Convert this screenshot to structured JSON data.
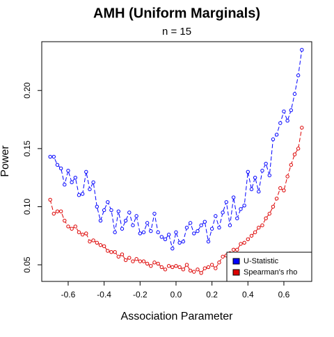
{
  "chart_data": {
    "type": "line",
    "title": "AMH (Uniform Marginals)",
    "subtitle": "n = 15",
    "xlabel": "Association Parameter",
    "ylabel": "Power",
    "x": [
      -0.7,
      -0.68,
      -0.66,
      -0.64,
      -0.62,
      -0.6,
      -0.58,
      -0.56,
      -0.54,
      -0.52,
      -0.5,
      -0.48,
      -0.46,
      -0.44,
      -0.42,
      -0.4,
      -0.38,
      -0.36,
      -0.34,
      -0.32,
      -0.3,
      -0.28,
      -0.26,
      -0.24,
      -0.22,
      -0.2,
      -0.18,
      -0.16,
      -0.14,
      -0.12,
      -0.1,
      -0.08,
      -0.06,
      -0.04,
      -0.02,
      0,
      0.02,
      0.04,
      0.06,
      0.08,
      0.1,
      0.12,
      0.14,
      0.16,
      0.18,
      0.2,
      0.22,
      0.24,
      0.26,
      0.28,
      0.3,
      0.32,
      0.34,
      0.36,
      0.38,
      0.4,
      0.42,
      0.44,
      0.46,
      0.48,
      0.5,
      0.52,
      0.54,
      0.56,
      0.58,
      0.6,
      0.62,
      0.64,
      0.66,
      0.68,
      0.7
    ],
    "series": [
      {
        "name": "U-Statistic",
        "color": "#0000ff",
        "values": [
          0.143,
          0.143,
          0.136,
          0.133,
          0.119,
          0.131,
          0.121,
          0.125,
          0.11,
          0.111,
          0.13,
          0.115,
          0.121,
          0.1,
          0.088,
          0.097,
          0.104,
          0.097,
          0.078,
          0.096,
          0.081,
          0.088,
          0.095,
          0.084,
          0.092,
          0.077,
          0.078,
          0.086,
          0.079,
          0.094,
          0.078,
          0.074,
          0.072,
          0.076,
          0.064,
          0.078,
          0.069,
          0.07,
          0.082,
          0.086,
          0.077,
          0.079,
          0.084,
          0.087,
          0.07,
          0.081,
          0.092,
          0.082,
          0.095,
          0.104,
          0.084,
          0.108,
          0.09,
          0.098,
          0.101,
          0.13,
          0.115,
          0.125,
          0.113,
          0.131,
          0.137,
          0.127,
          0.158,
          0.162,
          0.172,
          0.182,
          0.174,
          0.183,
          0.197,
          0.213,
          0.235
        ]
      },
      {
        "name": "Spearman's rho",
        "color": "#dd0000",
        "values": [
          0.106,
          0.094,
          0.096,
          0.096,
          0.088,
          0.083,
          0.081,
          0.083,
          0.078,
          0.076,
          0.077,
          0.07,
          0.071,
          0.069,
          0.067,
          0.066,
          0.062,
          0.061,
          0.061,
          0.057,
          0.059,
          0.054,
          0.056,
          0.053,
          0.055,
          0.053,
          0.053,
          0.051,
          0.049,
          0.052,
          0.051,
          0.048,
          0.046,
          0.049,
          0.048,
          0.049,
          0.048,
          0.046,
          0.05,
          0.045,
          0.044,
          0.046,
          0.043,
          0.047,
          0.048,
          0.05,
          0.047,
          0.052,
          0.057,
          0.058,
          0.06,
          0.063,
          0.063,
          0.068,
          0.069,
          0.072,
          0.075,
          0.078,
          0.082,
          0.084,
          0.09,
          0.094,
          0.1,
          0.107,
          0.116,
          0.114,
          0.126,
          0.136,
          0.145,
          0.15,
          0.168
        ]
      }
    ],
    "xlim": [
      -0.747,
      0.755
    ],
    "ylim": [
      0.0357,
      0.242
    ],
    "xticks": [
      -0.6,
      -0.4,
      -0.2,
      {
        "value": 0,
        "label": "0.0"
      },
      0.2,
      0.4,
      0.6
    ],
    "yticks": [
      {
        "value": 0.05,
        "label": "0.05"
      },
      {
        "value": 0.1,
        "label": "0.10"
      },
      {
        "value": 0.15,
        "label": "0.15"
      },
      {
        "value": 0.2,
        "label": "0.20"
      }
    ],
    "legend": "bottom-right"
  }
}
